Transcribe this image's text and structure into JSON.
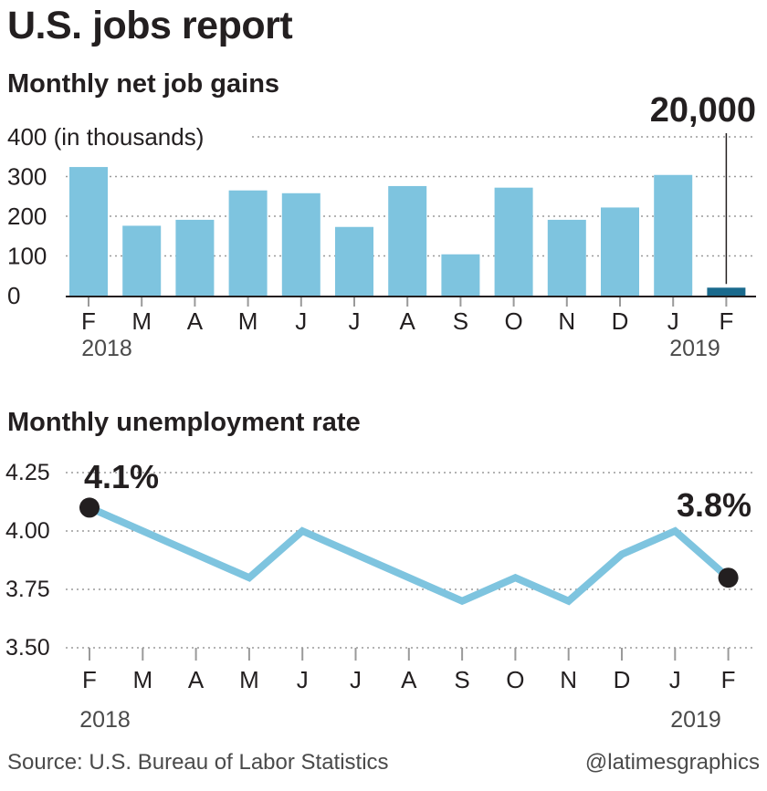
{
  "title": "U.S. jobs report",
  "footer": {
    "source": "Source: U.S. Bureau of Labor Statistics",
    "credit": "@latimesgraphics"
  },
  "colors": {
    "bar": "#7ec4df",
    "highlight": "#1a6a8d",
    "line": "#7ec4df",
    "dot": "#231f20",
    "grid": "#9a9a9a",
    "text": "#231f20"
  },
  "chart_data": [
    {
      "type": "bar",
      "title": "Monthly net job gains",
      "ylabel": "(in thousands)",
      "categories": [
        "F",
        "M",
        "A",
        "M",
        "J",
        "J",
        "A",
        "S",
        "O",
        "N",
        "D",
        "J",
        "F"
      ],
      "year_labels": {
        "first": "2018",
        "last": "2019"
      },
      "values": [
        324,
        176,
        191,
        265,
        258,
        173,
        276,
        104,
        272,
        191,
        222,
        304,
        20
      ],
      "highlight_index": 12,
      "annotation": "20,000",
      "yticks": [
        0,
        100,
        200,
        300,
        400
      ],
      "ytick_labels": [
        "0",
        "100",
        "200",
        "300",
        "400"
      ],
      "ylim": [
        0,
        400
      ],
      "grid": true
    },
    {
      "type": "line",
      "title": "Monthly unemployment rate",
      "categories": [
        "F",
        "M",
        "A",
        "M",
        "J",
        "J",
        "A",
        "S",
        "O",
        "N",
        "D",
        "J",
        "F"
      ],
      "year_labels": {
        "first": "2018",
        "last": "2019"
      },
      "values": [
        4.1,
        4.0,
        3.9,
        3.8,
        4.0,
        3.9,
        3.8,
        3.7,
        3.8,
        3.7,
        3.9,
        4.0,
        3.8
      ],
      "annotations": [
        {
          "index": 0,
          "text": "4.1%"
        },
        {
          "index": 12,
          "text": "3.8%"
        }
      ],
      "yticks": [
        3.5,
        3.75,
        4.0,
        4.25
      ],
      "ytick_labels": [
        "3.50",
        "3.75",
        "4.00",
        "4.25"
      ],
      "ylim": [
        3.5,
        4.25
      ],
      "grid": true
    }
  ]
}
